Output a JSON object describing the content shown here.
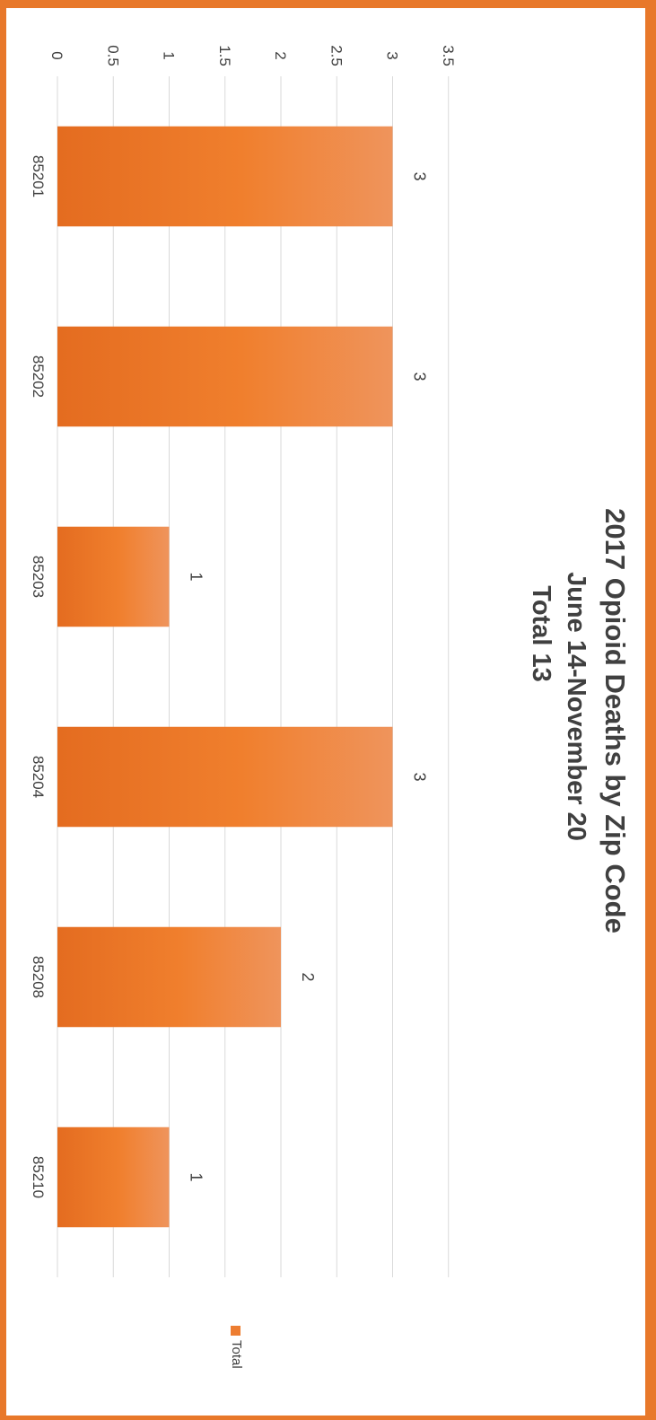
{
  "chart_data": {
    "type": "bar",
    "title_lines": [
      "2017 Opioid Deaths by Zip Code",
      "June 14-November 20",
      "Total 13"
    ],
    "categories": [
      "85201",
      "85202",
      "85203",
      "85204",
      "85208",
      "85210"
    ],
    "series": [
      {
        "name": "Total",
        "values": [
          3,
          3,
          1,
          3,
          2,
          1
        ]
      }
    ],
    "yticks": [
      "0",
      "0.5",
      "1",
      "1.5",
      "2",
      "2.5",
      "3",
      "3.5"
    ],
    "ylim": [
      0,
      3.5
    ],
    "grid": true,
    "legend_position": "bottom",
    "data_labels": true,
    "orientation": "rotated-90-clockwise",
    "colors": {
      "bar": "#ed7d31",
      "bar_dark": "#e0661c",
      "bar_light": "#f0955a",
      "frame": "#e8782a",
      "grid": "#d9d9d9",
      "text": "#404040"
    }
  }
}
